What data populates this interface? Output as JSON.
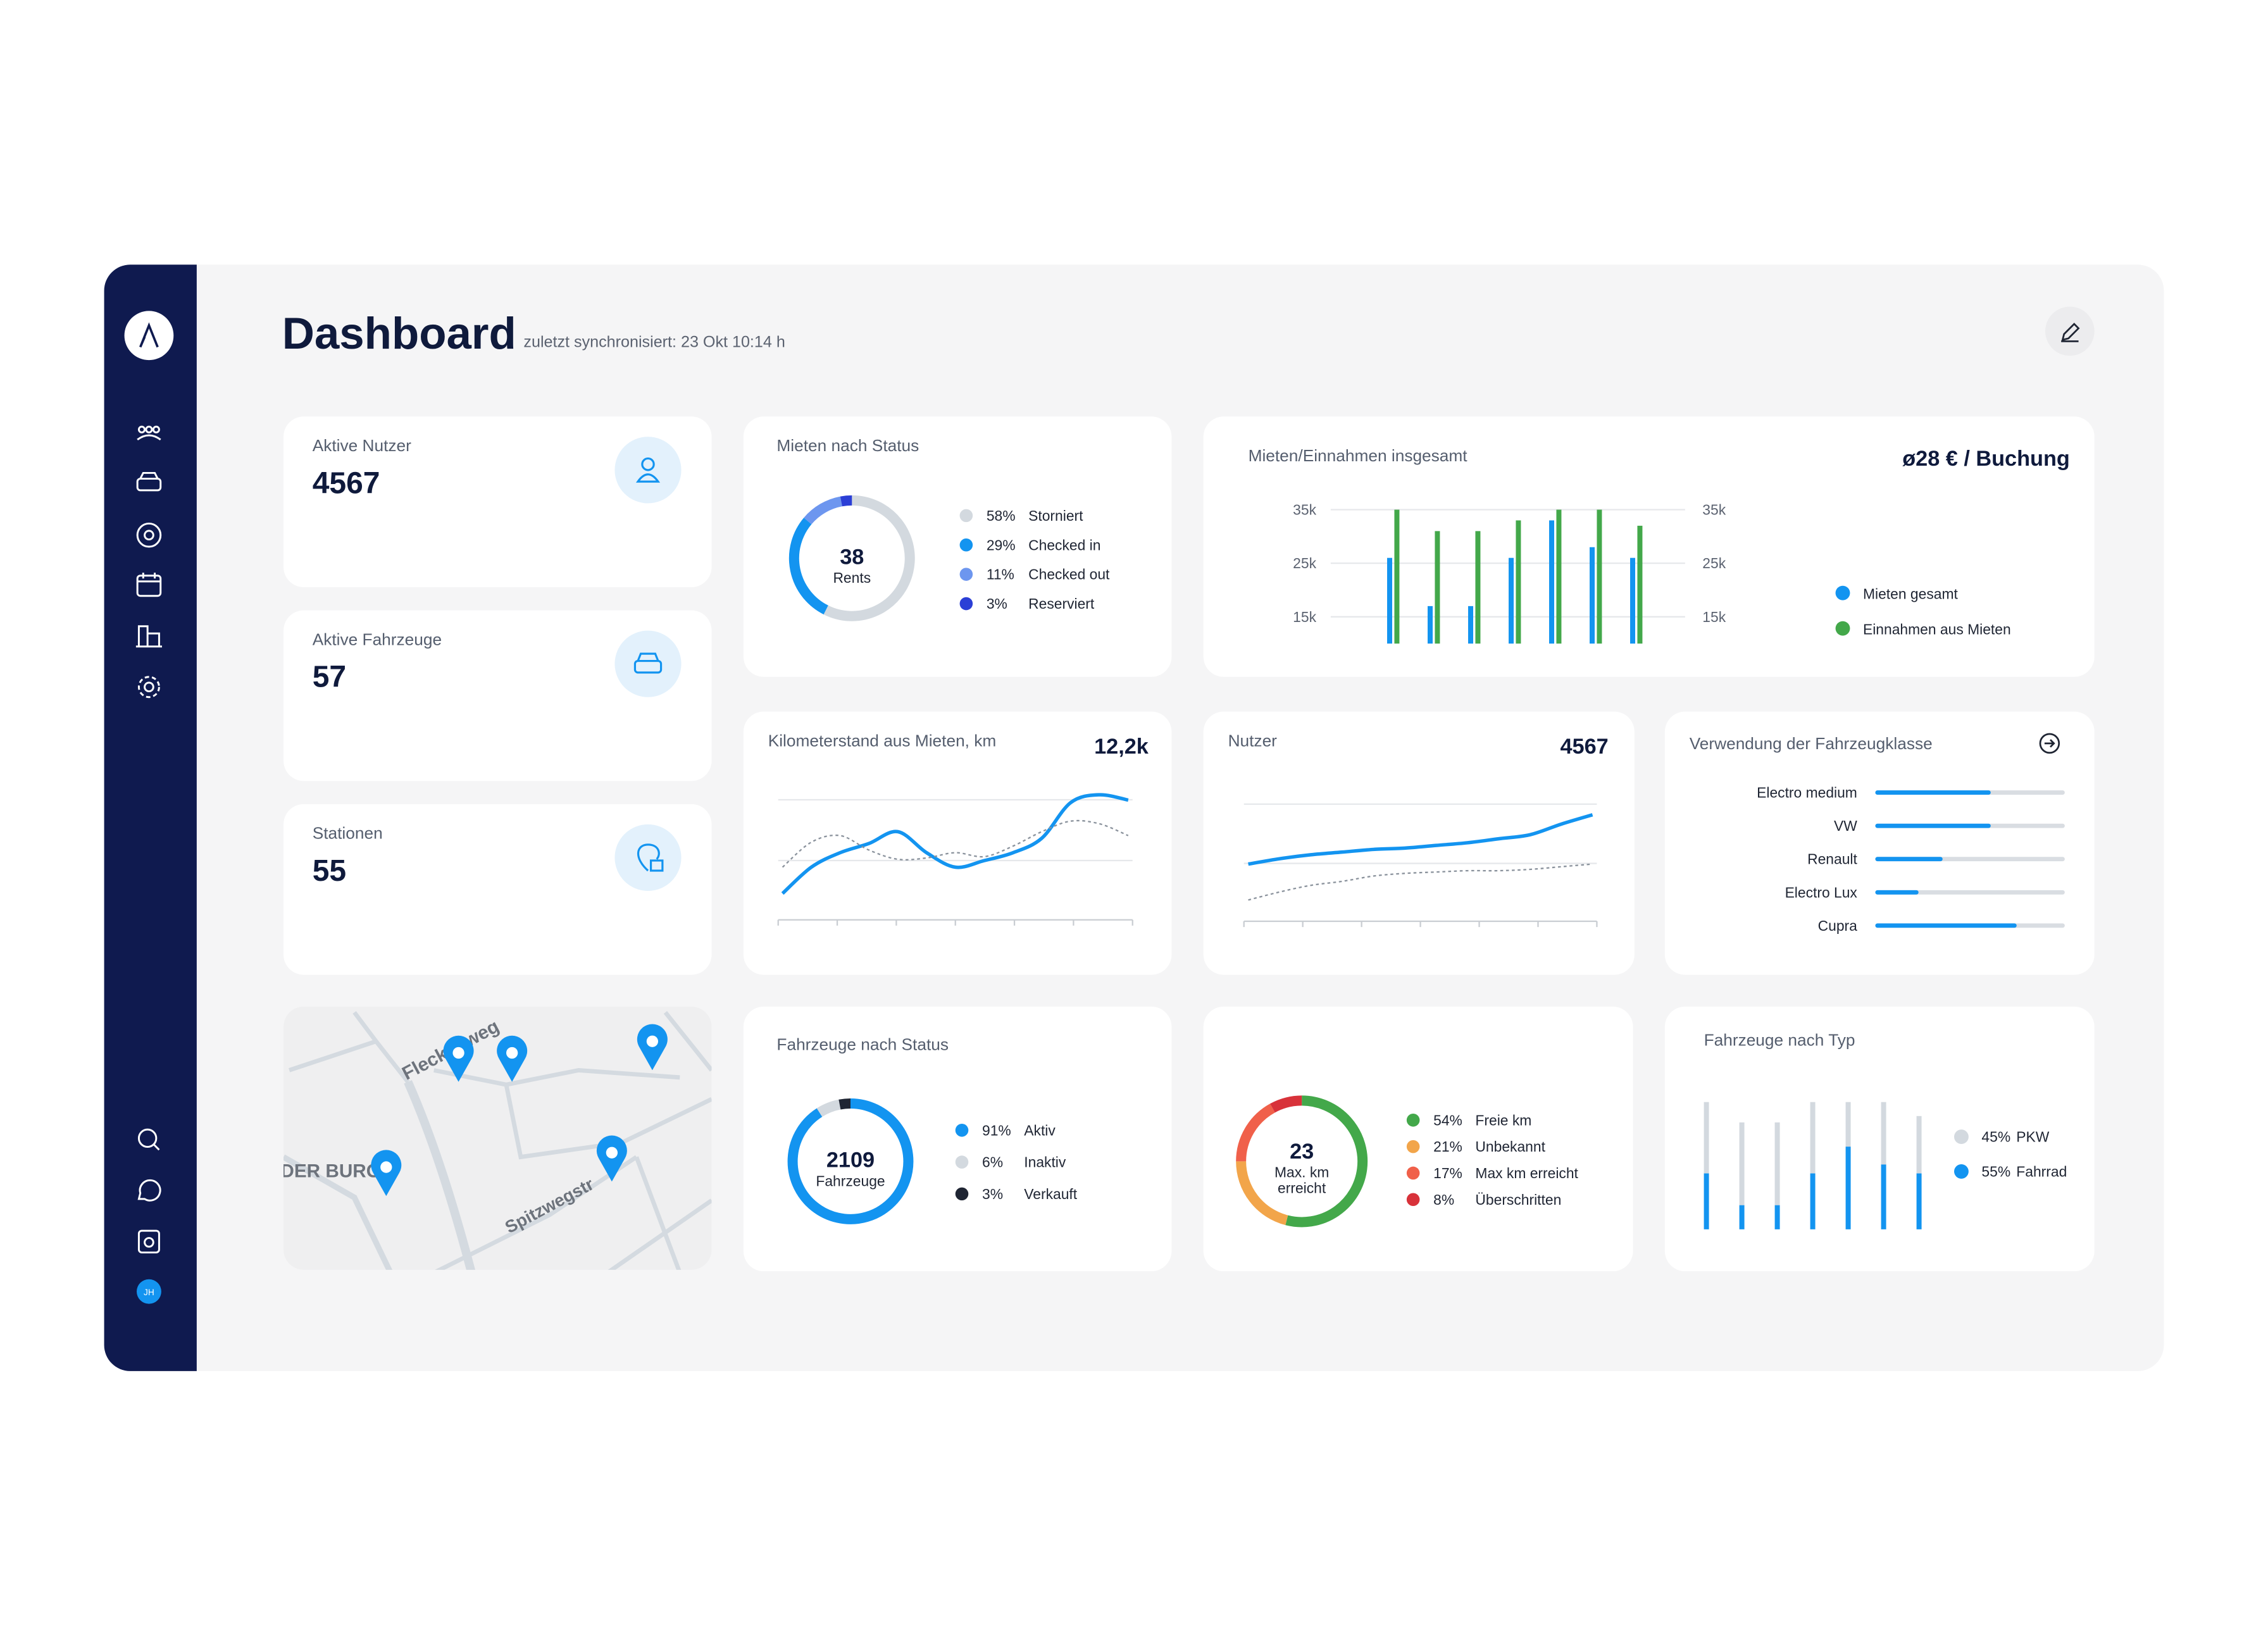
{
  "sidebar": {
    "avatar": "JH"
  },
  "header": {
    "title": "Dashboard",
    "subtitle": "zuletzt synchronisiert: 23 Okt 10:14 h"
  },
  "kpi_cards": [
    {
      "label": "Aktive Nutzer",
      "value": 4567
    },
    {
      "label": "Aktive Fahrzeuge",
      "value": 57
    },
    {
      "label": "Stationen",
      "value": 55
    }
  ],
  "rents_by_status": {
    "type": "donut",
    "title": "Mieten nach Status",
    "center_value": 38,
    "center_label": "Rents",
    "categories": [
      "Storniert",
      "Checked in",
      "Checked out",
      "Reserviert"
    ],
    "values": [
      58,
      29,
      11,
      3
    ],
    "value_labels": [
      "58%",
      "29%",
      "11%",
      "3%"
    ],
    "colors": [
      "#d3d9df",
      "#1394f0",
      "#6d96ef",
      "#2b3fd6"
    ]
  },
  "rents_revenue": {
    "type": "bar",
    "title": "Mieten/Einnahmen insgesamt",
    "kpi": "ø28 € / Buchung",
    "categories": [
      null,
      null,
      null,
      null,
      null,
      null,
      null
    ],
    "series": [
      {
        "name": "Mieten gesamt",
        "color": "#1394f0",
        "values": [
          26000,
          17000,
          17000,
          26000,
          33000,
          28000,
          26000
        ]
      },
      {
        "name": "Einnahmen aus Mieten",
        "color": "#43a84a",
        "values": [
          35000,
          31000,
          31000,
          33000,
          35000,
          35000,
          32000
        ]
      }
    ],
    "ylim": [
      10000,
      37000
    ],
    "yticks": [
      {
        "value": 15000,
        "label": "15k"
      },
      {
        "value": 25000,
        "label": "25k"
      },
      {
        "value": 35000,
        "label": "35k"
      }
    ],
    "y2lim": [
      10000,
      37000
    ],
    "y2ticks": [
      {
        "value": 15000,
        "label": "15k"
      },
      {
        "value": 25000,
        "label": "25k"
      },
      {
        "value": 35000,
        "label": "35k"
      }
    ],
    "grid": true,
    "legend": "right"
  },
  "mileage": {
    "type": "line",
    "title": "Kilometerstand aus Mieten, km",
    "kpi": "12,2k",
    "ylim": [
      0,
      100
    ],
    "series": [
      {
        "color": "#1394f0",
        "style": "solid",
        "values": [
          20,
          40,
          51,
          58,
          67,
          51,
          40,
          45,
          51,
          62,
          89,
          95,
          91
        ]
      },
      {
        "color": "#8a929c",
        "style": "dotted",
        "values": [
          40,
          59,
          64,
          53,
          46,
          47,
          51,
          48,
          56,
          67,
          75,
          73,
          64
        ]
      }
    ]
  },
  "users": {
    "type": "line",
    "title": "Nutzer",
    "kpi": 4567,
    "ylim": [
      0,
      100
    ],
    "series": [
      {
        "color": "#1394f0",
        "style": "solid",
        "values": [
          43,
          47,
          50,
          52,
          54,
          55,
          57,
          59,
          62,
          65,
          73,
          80
        ]
      },
      {
        "color": "#8a929c",
        "style": "dotted",
        "values": [
          16,
          22,
          27,
          30,
          34,
          36,
          37,
          38,
          38,
          39,
          41,
          43
        ]
      }
    ]
  },
  "vehicle_class": {
    "type": "hbar",
    "title": "Verwendung der Fahrzeugklasse",
    "categories": [
      "Electro medium",
      "VW",
      "Renault",
      "Electro Lux",
      "Cupra"
    ],
    "values": [
      60,
      60,
      34,
      21,
      74
    ],
    "xlim": [
      0,
      100
    ],
    "color": "#1394f0"
  },
  "map": {
    "streets": [
      "Fleckenweg",
      "DER BURG",
      "Spitzwegstr"
    ]
  },
  "vehicles_by_status": {
    "type": "donut",
    "title": "Fahrzeuge nach Status",
    "center_value": 2109,
    "center_label": "Fahrzeuge",
    "categories": [
      "Aktiv",
      "Inaktiv",
      "Verkauft"
    ],
    "values": [
      91,
      6,
      3
    ],
    "value_labels": [
      "91%",
      "6%",
      "3%"
    ],
    "colors": [
      "#1394f0",
      "#d3d9df",
      "#1f2533"
    ]
  },
  "km_limit": {
    "type": "donut",
    "center_value": 23,
    "center_label": [
      "Max. km",
      "erreicht"
    ],
    "categories": [
      "Freie km",
      "Unbekannt",
      "Max km erreicht",
      "Überschritten"
    ],
    "values": [
      54,
      21,
      17,
      8
    ],
    "value_labels": [
      "54%",
      "21%",
      "17%",
      "8%"
    ],
    "colors": [
      "#43a84a",
      "#f2a54a",
      "#f0604a",
      "#d8323a"
    ]
  },
  "vehicles_by_type": {
    "type": "stacked_bar",
    "title": "Fahrzeuge nach Typ",
    "categories": [
      null,
      null,
      null,
      null,
      null,
      null,
      null
    ],
    "ylim": [
      0,
      100
    ],
    "series": [
      {
        "name": "Fahrrad",
        "share": 55,
        "share_label": "55%",
        "color": "#1394f0",
        "values": [
          44,
          19,
          19,
          44,
          65,
          51,
          44
        ]
      },
      {
        "name": "PKW",
        "share": 45,
        "share_label": "45%",
        "color": "#d3d9df",
        "values": [
          56,
          65,
          65,
          56,
          35,
          49,
          45
        ]
      }
    ]
  }
}
